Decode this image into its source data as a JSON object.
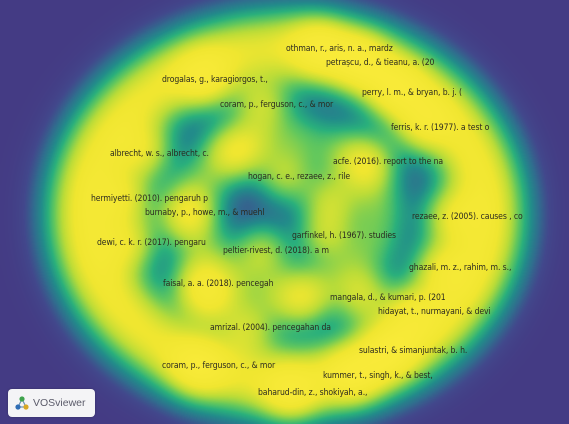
{
  "app": {
    "name": "VOSviewer",
    "view": "density-visualization"
  },
  "colors": {
    "background": "#443b84",
    "high_density": "#f5e83a",
    "mid_density": "#2db27d",
    "low_density": "#2c7b8e",
    "label_text": "#2b2a1f"
  },
  "brand": {
    "name": "VOSviewer",
    "icon": "vosviewer-logo-icon"
  },
  "terms": [
    {
      "id": "othman",
      "label": "othman, r., aris, n. a., mardz"
    },
    {
      "id": "petrascu",
      "label": "petrașcu, d., & tieanu, a. (20"
    },
    {
      "id": "drogalas",
      "label": "drogalas, g., karagiorgos, t.,"
    },
    {
      "id": "perry",
      "label": "perry, l. m., & bryan, b. j. ("
    },
    {
      "id": "coram-1",
      "label": "coram, p., ferguson, c., & mor"
    },
    {
      "id": "ferris",
      "label": "ferris, k. r. (1977). a test o"
    },
    {
      "id": "albrecht",
      "label": "albrecht, w. s., albrecht, c."
    },
    {
      "id": "acfe",
      "label": "acfe. (2016). report to the na"
    },
    {
      "id": "hogan",
      "label": "hogan, c. e., rezaee, z., rile"
    },
    {
      "id": "hermiyetti",
      "label": "hermiyetti. (2010). pengaruh p"
    },
    {
      "id": "burnaby",
      "label": "burnaby, p., howe, m., & muehl"
    },
    {
      "id": "rezaee",
      "label": "rezaee, z. (2005). causes , co"
    },
    {
      "id": "garfinkel",
      "label": "garfinkel, h. (1967). studies"
    },
    {
      "id": "dewi",
      "label": "dewi, c. k. r. (2017). pengaru"
    },
    {
      "id": "peltier",
      "label": "peltier-rivest, d. (2018). a m"
    },
    {
      "id": "ghazali",
      "label": "ghazali, m. z., rahim, m. s.,"
    },
    {
      "id": "faisal",
      "label": "faisal, a. a. (2018). pencegah"
    },
    {
      "id": "mangala",
      "label": "mangala, d., & kumari, p. (201"
    },
    {
      "id": "hidayat",
      "label": "hidayat, t., nurmayani, & devi"
    },
    {
      "id": "amrizal",
      "label": "amrizal. (2004). pencegahan da"
    },
    {
      "id": "sulastri",
      "label": "sulastri, & simanjuntak, b. h."
    },
    {
      "id": "coram-2",
      "label": "coram, p., ferguson, c., & mor"
    },
    {
      "id": "kummer",
      "label": "kummer, t., singh, k., & best,"
    },
    {
      "id": "baharud",
      "label": "baharud-din, z., shokiyah, a.,"
    }
  ]
}
